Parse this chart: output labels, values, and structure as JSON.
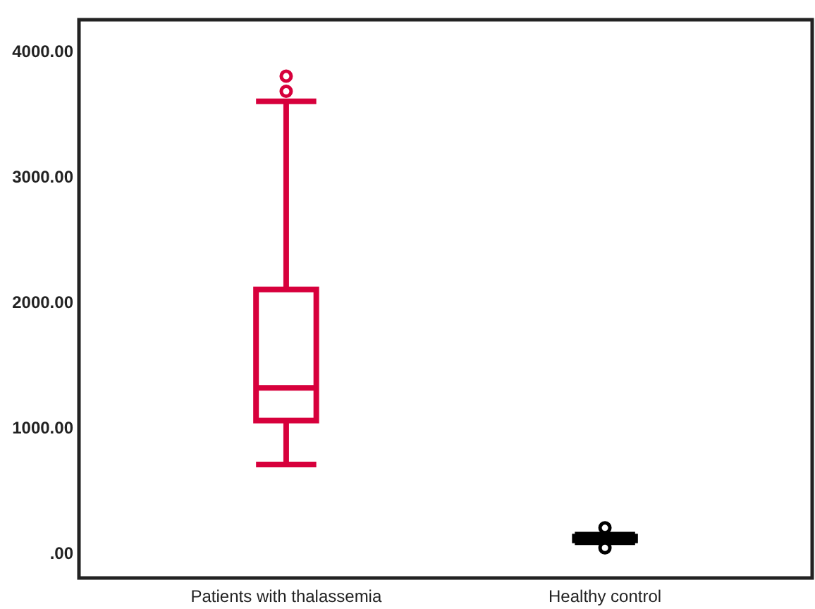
{
  "chart_data": {
    "type": "box",
    "categories": [
      "Patients with thalassemia",
      "Healthy control"
    ],
    "series": [
      {
        "color": "#d7003c",
        "boxes": [
          {
            "low": 705,
            "q1": 1055,
            "median": 1315,
            "q3": 2100,
            "high": 3600,
            "outliers": [
              3680,
              3800
            ]
          },
          null
        ]
      },
      {
        "color": "#000000",
        "boxes": [
          null,
          {
            "low": 85,
            "q1": 100,
            "median": 115,
            "q3": 130,
            "high": 145,
            "outliers": [
              40,
              200
            ]
          }
        ]
      }
    ],
    "ylim": [
      -200,
      4250
    ],
    "yticks": [
      {
        "value": 0,
        "label": ".00"
      },
      {
        "value": 1000,
        "label": "1000.00"
      },
      {
        "value": 2000,
        "label": "2000.00"
      },
      {
        "value": 3000,
        "label": "3000.00"
      },
      {
        "value": 4000,
        "label": "4000.00"
      }
    ],
    "grid": false
  }
}
